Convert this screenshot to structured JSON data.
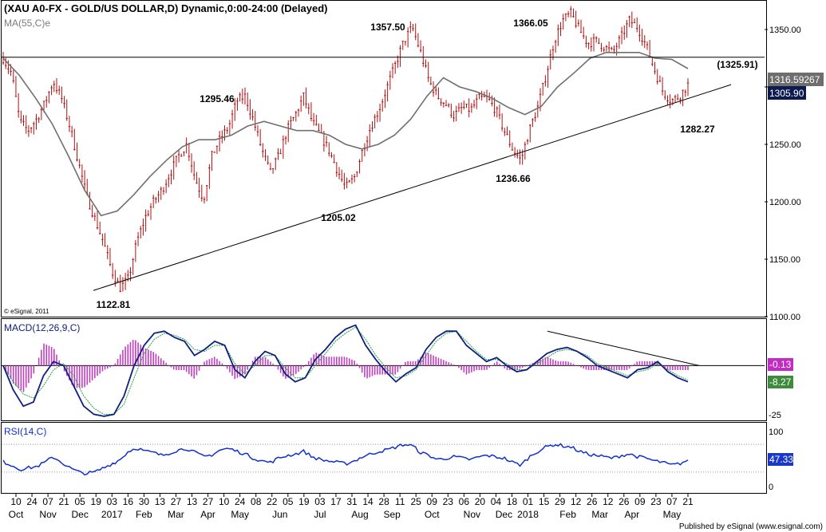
{
  "header": {
    "title": "(XAU A0-FX - GOLD/US DOLLAR,D) Dynamic,0:00-24:00 (Delayed)",
    "ma_label": "MA(55,C)e",
    "copyright": "© eSignal, 2011"
  },
  "footer": {
    "published": "Published by eSignal (www.esignal.com)"
  },
  "colors": {
    "candle": "#b01010",
    "ma": "#707070",
    "macd": "#102080",
    "signal": "#20a040",
    "hist": "#c040c0",
    "rsi": "#1030d0",
    "badge_gray": "#6e6e6e",
    "badge_navy": "#0d1a50",
    "badge_green": "#3c8c3c",
    "badge_magenta": "#c22cc2",
    "badge_blue": "#1a38c6"
  },
  "chart_data": [
    {
      "type": "candlestick",
      "title": "XAU A0-FX - GOLD/US DOLLAR, Daily",
      "ylim": [
        1100,
        1375
      ],
      "yticks": [
        1100,
        1150,
        1200,
        1250,
        1300,
        1350
      ],
      "x_day_labels": [
        "10",
        "24",
        "07",
        "21",
        "05",
        "19",
        "03",
        "16",
        "30",
        "13",
        "27",
        "13",
        "27",
        "10",
        "24",
        "08",
        "22",
        "05",
        "19",
        "03",
        "17",
        "31",
        "14",
        "28",
        "11",
        "25",
        "09",
        "23",
        "06",
        "20",
        "04",
        "18",
        "01",
        "15",
        "29",
        "12",
        "26",
        "12",
        "26",
        "09",
        "23",
        "07",
        "21"
      ],
      "x_month_labels": [
        {
          "label": "Oct",
          "idx": 0
        },
        {
          "label": "Nov",
          "idx": 2
        },
        {
          "label": "Dec",
          "idx": 4
        },
        {
          "label": "2017",
          "idx": 6
        },
        {
          "label": "Feb",
          "idx": 8
        },
        {
          "label": "Mar",
          "idx": 10
        },
        {
          "label": "Apr",
          "idx": 12
        },
        {
          "label": "May",
          "idx": 14
        },
        {
          "label": "Jun",
          "idx": 16.5
        },
        {
          "label": "Jul",
          "idx": 19
        },
        {
          "label": "Aug",
          "idx": 21.5
        },
        {
          "label": "Sep",
          "idx": 23.5
        },
        {
          "label": "Oct",
          "idx": 26
        },
        {
          "label": "Nov",
          "idx": 28.5
        },
        {
          "label": "Dec",
          "idx": 30.5
        },
        {
          "label": "2018",
          "idx": 32
        },
        {
          "label": "Feb",
          "idx": 34.5
        },
        {
          "label": "Mar",
          "idx": 36.5
        },
        {
          "label": "Apr",
          "idx": 38.5
        },
        {
          "label": "May",
          "idx": 41
        }
      ],
      "close_path": [
        1325,
        1312,
        1270,
        1262,
        1272,
        1286,
        1305,
        1290,
        1265,
        1235,
        1205,
        1185,
        1165,
        1140,
        1125,
        1133,
        1165,
        1186,
        1200,
        1210,
        1225,
        1240,
        1250,
        1220,
        1202,
        1240,
        1255,
        1265,
        1288,
        1292,
        1270,
        1245,
        1225,
        1240,
        1262,
        1276,
        1292,
        1270,
        1258,
        1245,
        1228,
        1212,
        1220,
        1244,
        1265,
        1280,
        1300,
        1320,
        1340,
        1352,
        1330,
        1305,
        1292,
        1285,
        1275,
        1282,
        1280,
        1290,
        1290,
        1280,
        1262,
        1246,
        1236,
        1262,
        1282,
        1310,
        1340,
        1358,
        1364,
        1350,
        1338,
        1340,
        1335,
        1330,
        1343,
        1358,
        1352,
        1336,
        1315,
        1296,
        1288,
        1292,
        1302
      ],
      "ma55_path": [
        1325,
        1310,
        1290,
        1268,
        1240,
        1210,
        1188,
        1192,
        1206,
        1222,
        1236,
        1248,
        1254,
        1254,
        1258,
        1266,
        1270,
        1266,
        1262,
        1262,
        1258,
        1250,
        1246,
        1250,
        1258,
        1272,
        1292,
        1308,
        1300,
        1296,
        1290,
        1282,
        1276,
        1283,
        1300,
        1312,
        1325,
        1330,
        1330,
        1330,
        1325,
        1324,
        1316
      ],
      "annotations": [
        {
          "label": "1357.50",
          "value": 1357.5
        },
        {
          "label": "1366.05",
          "value": 1366.05
        },
        {
          "label": "1295.46",
          "value": 1295.46
        },
        {
          "label": "(1325.91)",
          "value": 1325.91
        },
        {
          "label": "1282.27",
          "value": 1282.27
        },
        {
          "label": "1236.66",
          "value": 1236.66
        },
        {
          "label": "1205.02",
          "value": 1205.02
        },
        {
          "label": "1122.81",
          "value": 1122.81
        }
      ],
      "horizontal_line": 1325.91,
      "trendline": [
        [
          1122.81
        ],
        [
          1302
        ]
      ],
      "badges": {
        "ma_value": "1316.59267",
        "last_price": "1305.90"
      }
    },
    {
      "type": "line",
      "title": "MACD(12,26,9,C)",
      "ylim": [
        -27,
        23
      ],
      "ytick_label": "-25",
      "macd_path": [
        0,
        -12,
        -20,
        -18,
        -5,
        2,
        0,
        -10,
        -20,
        -24,
        -25,
        -24,
        -15,
        0,
        10,
        16,
        17,
        14,
        12,
        5,
        8,
        12,
        10,
        -2,
        -6,
        2,
        7,
        5,
        -4,
        -8,
        -6,
        3,
        8,
        14,
        18,
        20,
        10,
        3,
        -3,
        -8,
        -4,
        -1,
        8,
        14,
        17,
        17,
        10,
        6,
        2,
        4,
        0,
        -3,
        -2,
        2,
        6,
        8,
        9,
        7,
        4,
        0,
        -2,
        -4,
        -6,
        -2,
        -1,
        2,
        -3,
        -6,
        -8
      ],
      "signal_path": [
        0,
        -8,
        -14,
        -16,
        -10,
        -2,
        1,
        -5,
        -15,
        -21,
        -24,
        -24,
        -19,
        -6,
        6,
        13,
        16,
        15,
        13,
        8,
        7,
        10,
        10,
        1,
        -4,
        0,
        5,
        5,
        -1,
        -6,
        -6,
        0,
        6,
        12,
        16,
        19,
        13,
        5,
        -1,
        -6,
        -5,
        -2,
        5,
        12,
        16,
        17,
        12,
        7,
        3,
        3,
        1,
        -2,
        -2,
        1,
        4,
        7,
        8,
        7,
        5,
        1,
        -1,
        -3,
        -5,
        -3,
        -2,
        1,
        -2,
        -5,
        -7
      ],
      "trendline_desc": "resistance line from late-Jan 2018 high to May 2018",
      "badges": {
        "hist_value": "-0.13",
        "macd_value": "-8.27"
      }
    },
    {
      "type": "line",
      "title": "RSI(14,C)",
      "ylim": [
        0,
        100
      ],
      "yticks": [
        0,
        100
      ],
      "guide_levels": [
        70,
        30
      ],
      "rsi_path": [
        45,
        40,
        34,
        36,
        38,
        44,
        52,
        44,
        36,
        30,
        28,
        30,
        36,
        42,
        48,
        60,
        65,
        60,
        58,
        54,
        58,
        62,
        64,
        58,
        52,
        55,
        62,
        64,
        60,
        56,
        50,
        46,
        44,
        50,
        54,
        56,
        60,
        52,
        48,
        46,
        44,
        42,
        46,
        52,
        56,
        60,
        62,
        66,
        70,
        68,
        58,
        54,
        48,
        50,
        52,
        50,
        48,
        52,
        54,
        52,
        50,
        44,
        40,
        52,
        60,
        66,
        70,
        68,
        66,
        60,
        56,
        54,
        52,
        50,
        54,
        56,
        52,
        50,
        46,
        44,
        40,
        42,
        47.33
      ],
      "badges": {
        "rsi_value": "47.33"
      }
    }
  ]
}
